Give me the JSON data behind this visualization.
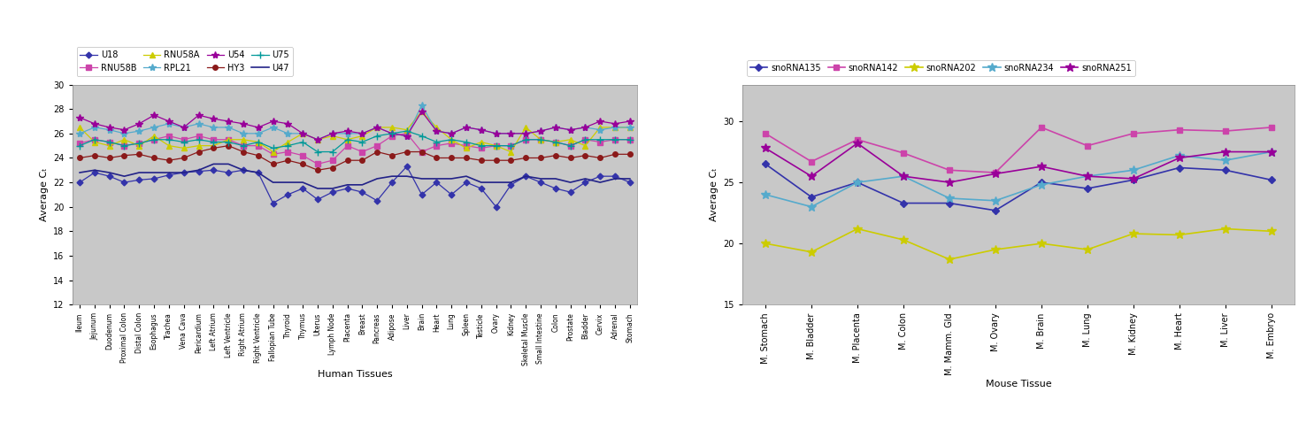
{
  "left_chart": {
    "xlabel": "Human Tissues",
    "ylabel": "Average Cₜ",
    "ylim": [
      12,
      30
    ],
    "yticks": [
      12,
      14,
      16,
      18,
      20,
      22,
      24,
      26,
      28,
      30
    ],
    "bg_color": "#c8c8c8",
    "categories": [
      "Ileum",
      "Jejunum",
      "Duodenum",
      "Proximal Colon",
      "Distal Colon",
      "Esophagus",
      "Trachea",
      "Vena Cava",
      "Pericardium",
      "Left Atrium",
      "Left Ventricle",
      "Right Atrium",
      "Right Ventricle",
      "Fallopian Tube",
      "Thyroid",
      "Thymus",
      "Uterus",
      "Lymph Node",
      "Placenta",
      "Breast",
      "Pancreas",
      "Adipose",
      "Liver",
      "Brain",
      "Heart",
      "Lung",
      "Spleen",
      "Testicle",
      "Ovary",
      "Kidney",
      "Skeletal Muscle",
      "Small Intestine",
      "Colon",
      "Prostate",
      "Bladder",
      "Cervix",
      "Adrenal",
      "Stomach"
    ],
    "series": {
      "U18": {
        "color": "#3333aa",
        "marker": "D",
        "markersize": 3.5,
        "linewidth": 0.9,
        "values": [
          22.0,
          22.8,
          22.5,
          22.0,
          22.2,
          22.3,
          22.6,
          22.8,
          22.9,
          23.0,
          22.8,
          23.0,
          22.8,
          20.3,
          21.0,
          21.5,
          20.6,
          21.2,
          21.5,
          21.2,
          20.5,
          22.0,
          23.3,
          21.0,
          22.0,
          21.0,
          22.0,
          21.5,
          20.0,
          21.8,
          22.5,
          22.0,
          21.5,
          21.2,
          22.0,
          22.5,
          22.5,
          22.0
        ]
      },
      "U54": {
        "color": "#990099",
        "marker": "*",
        "markersize": 6,
        "linewidth": 0.9,
        "values": [
          27.3,
          26.8,
          26.5,
          26.3,
          26.8,
          27.5,
          27.0,
          26.5,
          27.5,
          27.2,
          27.0,
          26.8,
          26.5,
          27.0,
          26.8,
          26.0,
          25.5,
          26.0,
          26.2,
          26.0,
          26.5,
          26.0,
          25.8,
          27.8,
          26.2,
          26.0,
          26.5,
          26.3,
          26.0,
          26.0,
          26.0,
          26.2,
          26.5,
          26.3,
          26.5,
          27.0,
          26.8,
          27.0
        ]
      },
      "RNU58B": {
        "color": "#cc44aa",
        "marker": "s",
        "markersize": 4,
        "linewidth": 0.9,
        "values": [
          25.2,
          25.5,
          25.3,
          25.0,
          25.2,
          25.5,
          25.8,
          25.5,
          25.8,
          25.5,
          25.5,
          25.0,
          25.0,
          24.3,
          24.5,
          24.2,
          23.5,
          23.8,
          25.0,
          24.5,
          25.0,
          25.8,
          26.0,
          24.5,
          25.0,
          25.2,
          25.0,
          24.8,
          25.0,
          25.0,
          25.5,
          25.5,
          25.3,
          25.0,
          25.5,
          25.3,
          25.5,
          25.5
        ]
      },
      "HY3": {
        "color": "#8b1a1a",
        "marker": "o",
        "markersize": 4,
        "linewidth": 0.9,
        "values": [
          24.0,
          24.2,
          24.0,
          24.2,
          24.3,
          24.0,
          23.8,
          24.0,
          24.5,
          24.8,
          25.0,
          24.5,
          24.2,
          23.5,
          23.8,
          23.5,
          23.0,
          23.2,
          23.8,
          23.8,
          24.5,
          24.2,
          24.5,
          24.5,
          24.0,
          24.0,
          24.0,
          23.8,
          23.8,
          23.8,
          24.0,
          24.0,
          24.2,
          24.0,
          24.2,
          24.0,
          24.3,
          24.3
        ]
      },
      "RNU58A": {
        "color": "#cccc00",
        "marker": "^",
        "markersize": 5,
        "linewidth": 0.9,
        "values": [
          26.5,
          25.3,
          25.0,
          25.5,
          25.0,
          25.8,
          25.0,
          24.8,
          25.0,
          25.0,
          25.5,
          25.5,
          25.3,
          24.5,
          25.3,
          26.0,
          25.5,
          25.8,
          25.5,
          25.8,
          26.5,
          26.5,
          26.3,
          27.8,
          26.5,
          25.5,
          24.8,
          25.3,
          25.0,
          24.5,
          26.5,
          25.5,
          25.3,
          25.5,
          25.0,
          26.5,
          26.5,
          26.5
        ]
      },
      "U75": {
        "color": "#009999",
        "marker": "+",
        "markersize": 6,
        "linewidth": 0.9,
        "values": [
          25.0,
          25.5,
          25.3,
          25.0,
          25.2,
          25.5,
          25.5,
          25.3,
          25.5,
          25.3,
          25.3,
          25.0,
          25.3,
          24.8,
          25.0,
          25.3,
          24.5,
          24.5,
          25.5,
          25.3,
          25.8,
          26.0,
          26.2,
          25.8,
          25.3,
          25.5,
          25.3,
          25.0,
          25.0,
          25.0,
          25.5,
          25.5,
          25.3,
          25.0,
          25.5,
          25.5,
          25.5,
          25.5
        ]
      },
      "RPL21": {
        "color": "#55aacc",
        "marker": "*",
        "markersize": 6,
        "linewidth": 0.9,
        "values": [
          26.0,
          26.5,
          26.3,
          26.0,
          26.2,
          26.5,
          26.8,
          26.5,
          26.8,
          26.5,
          26.5,
          26.0,
          26.0,
          26.5,
          26.0,
          26.0,
          25.5,
          26.0,
          26.0,
          26.0,
          26.5,
          26.0,
          25.8,
          28.3,
          26.2,
          26.0,
          26.5,
          26.3,
          26.0,
          26.0,
          26.0,
          26.2,
          26.5,
          26.3,
          26.5,
          26.3,
          26.5,
          26.5
        ]
      },
      "U47": {
        "color": "#222288",
        "marker": "None",
        "markersize": 0,
        "linewidth": 1.2,
        "values": [
          22.8,
          23.0,
          22.8,
          22.5,
          22.8,
          22.8,
          22.8,
          22.8,
          23.0,
          23.5,
          23.5,
          23.0,
          22.8,
          22.0,
          22.0,
          22.0,
          21.5,
          21.5,
          21.8,
          21.8,
          22.3,
          22.5,
          22.5,
          22.3,
          22.3,
          22.3,
          22.5,
          22.0,
          22.0,
          22.0,
          22.5,
          22.3,
          22.3,
          22.0,
          22.3,
          22.0,
          22.3,
          22.3
        ]
      }
    },
    "legend_order": [
      "U18",
      "RNU58B",
      "RNU58A",
      "RPL21",
      "U54",
      "HY3",
      "U75",
      "U47"
    ]
  },
  "right_chart": {
    "xlabel": "Mouse Tissue",
    "ylabel": "Average Cₜ",
    "ylim": [
      15,
      33
    ],
    "yticks": [
      15,
      20,
      25,
      30
    ],
    "bg_color": "#c8c8c8",
    "categories": [
      "M. Stomach",
      "M. Bladder",
      "M. Placenta",
      "M. Colon",
      "M. Mamm. Gld",
      "M. Ovary",
      "M. Brain",
      "M. Lung",
      "M. Kidney",
      "M. Heart",
      "M. Liver",
      "M. Embryo"
    ],
    "series": {
      "snoRNA135": {
        "color": "#3333aa",
        "marker": "D",
        "markersize": 4.5,
        "linewidth": 1.2,
        "values": [
          26.5,
          23.8,
          25.0,
          23.3,
          23.3,
          22.7,
          25.0,
          24.5,
          25.2,
          26.2,
          26.0,
          25.2
        ]
      },
      "snoRNA142": {
        "color": "#cc44aa",
        "marker": "s",
        "markersize": 4.5,
        "linewidth": 1.2,
        "values": [
          29.0,
          26.7,
          28.5,
          27.4,
          26.0,
          25.8,
          29.5,
          28.0,
          29.0,
          29.3,
          29.2,
          29.5
        ]
      },
      "snoRNA202": {
        "color": "#cccc00",
        "marker": "*",
        "markersize": 7,
        "linewidth": 1.2,
        "values": [
          20.0,
          19.3,
          21.2,
          20.3,
          18.7,
          19.5,
          20.0,
          19.5,
          20.8,
          20.7,
          21.2,
          21.0
        ]
      },
      "snoRNA234": {
        "color": "#55aacc",
        "marker": "*",
        "markersize": 7,
        "linewidth": 1.2,
        "values": [
          24.0,
          23.0,
          25.0,
          25.5,
          23.7,
          23.5,
          24.8,
          25.5,
          26.0,
          27.2,
          26.8,
          27.5
        ]
      },
      "snoRNA251": {
        "color": "#990099",
        "marker": "*",
        "markersize": 7,
        "linewidth": 1.2,
        "values": [
          27.8,
          25.5,
          28.2,
          25.5,
          25.0,
          25.7,
          26.3,
          25.5,
          25.3,
          27.0,
          27.5,
          27.5
        ]
      }
    },
    "legend_order": [
      "snoRNA135",
      "snoRNA142",
      "snoRNA202",
      "snoRNA234",
      "snoRNA251"
    ]
  }
}
